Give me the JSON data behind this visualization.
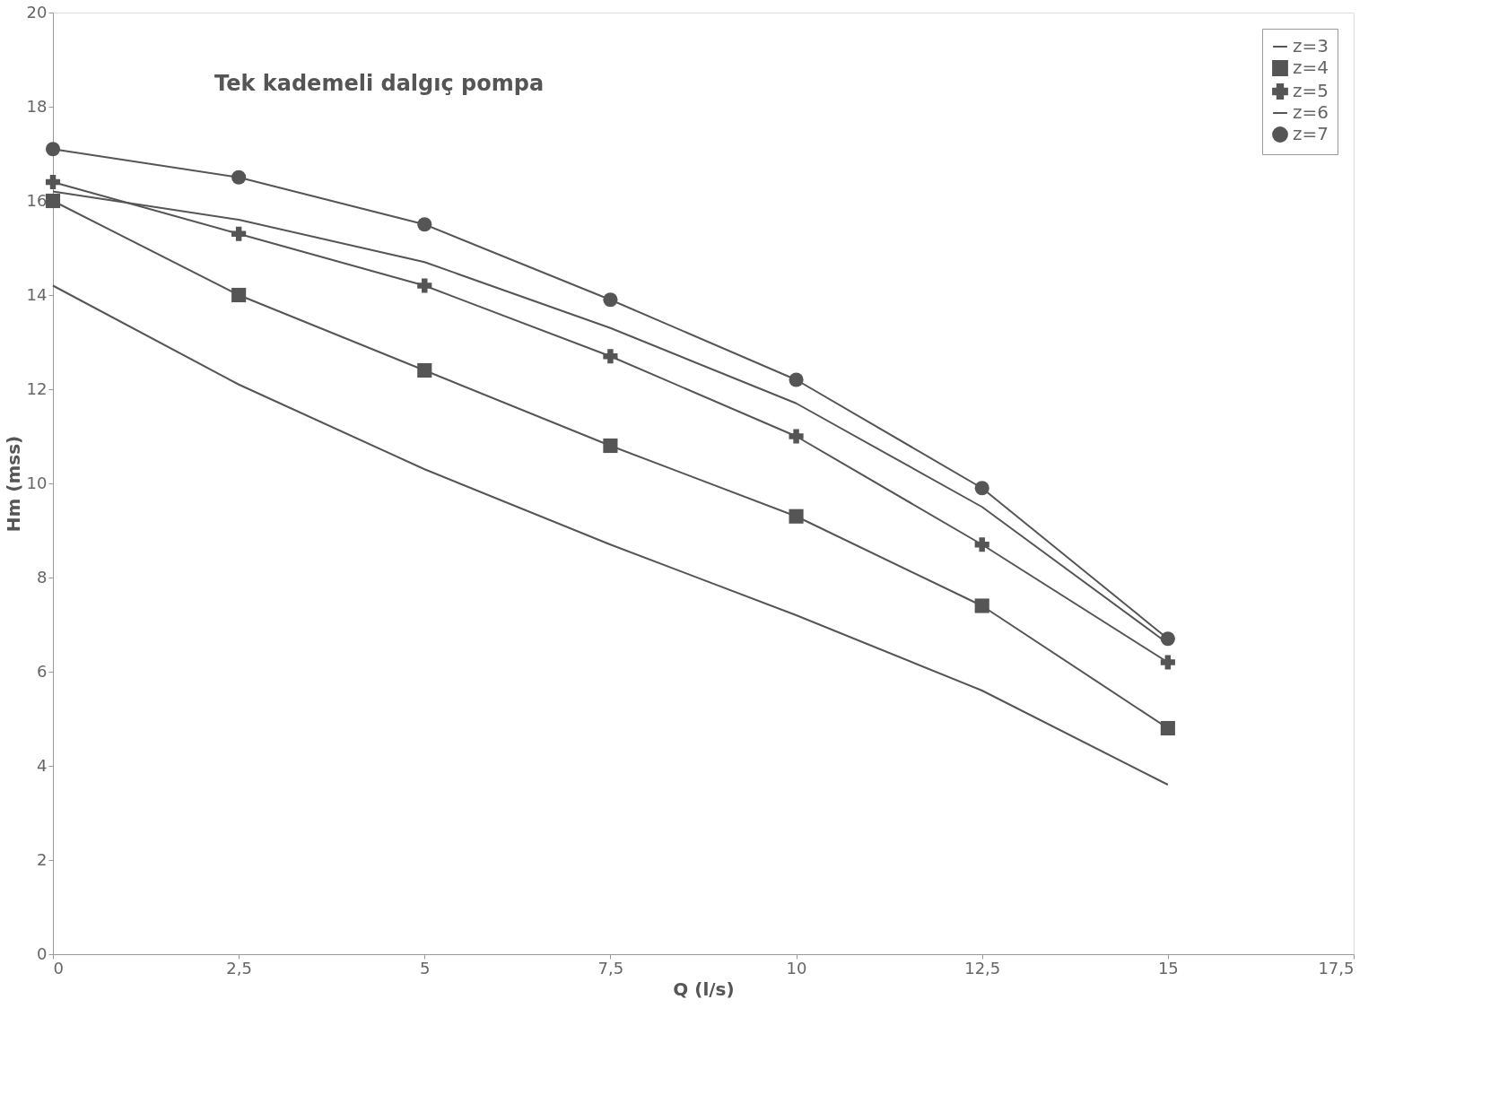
{
  "chart_data": {
    "type": "line",
    "title": "Tek kademeli dalgıç pompa",
    "xlabel": "Q (l/s)",
    "ylabel": "Hm (mss)",
    "x": [
      0,
      2.5,
      5,
      7.5,
      10,
      12.5,
      15
    ],
    "series": [
      {
        "name": "z=3",
        "color": "#555555",
        "marker": "none",
        "values": [
          14.2,
          12.1,
          10.3,
          8.7,
          7.2,
          5.6,
          3.6
        ]
      },
      {
        "name": "z=4",
        "color": "#555555",
        "marker": "square",
        "values": [
          16.0,
          14.0,
          12.4,
          10.8,
          9.3,
          7.4,
          4.8
        ]
      },
      {
        "name": "z=5",
        "color": "#555555",
        "marker": "cross",
        "values": [
          16.4,
          15.3,
          14.2,
          12.7,
          11.0,
          8.7,
          6.2
        ]
      },
      {
        "name": "z=6",
        "color": "#555555",
        "marker": "none",
        "values": [
          16.2,
          15.6,
          14.7,
          13.3,
          11.7,
          9.5,
          6.6
        ]
      },
      {
        "name": "z=7",
        "color": "#555555",
        "marker": "circle",
        "values": [
          17.1,
          16.5,
          15.5,
          13.9,
          12.2,
          9.9,
          6.7
        ]
      }
    ],
    "xlim": [
      0,
      17.5
    ],
    "xticks": [
      0,
      {
        "value": 2.5,
        "label": "2,5"
      },
      5,
      {
        "value": 7.5,
        "label": "7,5"
      },
      10,
      {
        "value": 12.5,
        "label": "12,5"
      },
      15,
      {
        "value": 17.5,
        "label": "17,5"
      }
    ],
    "ylim": [
      0,
      20
    ],
    "yticks": [
      0,
      2,
      4,
      6,
      8,
      10,
      12,
      14,
      16,
      18,
      20
    ],
    "legend": "top right"
  }
}
